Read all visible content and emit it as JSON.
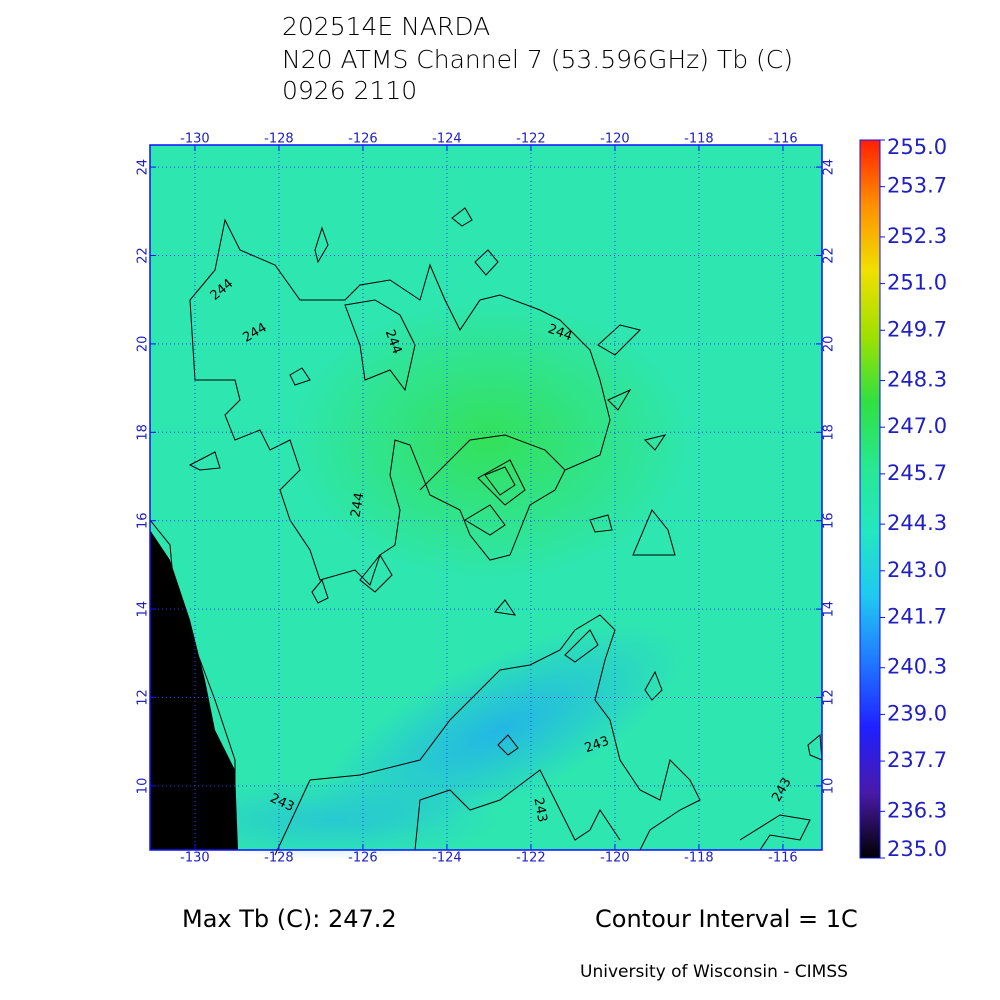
{
  "chart_data": {
    "type": "map",
    "title": [
      "202514E NARDA",
      "N20 ATMS Channel 7 (53.596GHz) Tb (C)",
      "0926 2110"
    ],
    "xlim": [
      -131.07,
      -115.07
    ],
    "ylim": [
      8.55,
      24.5
    ],
    "xticks": [
      -130,
      -128,
      -126,
      -124,
      -122,
      -120,
      -118,
      -116
    ],
    "yticks": [
      10,
      12,
      14,
      16,
      18,
      20,
      22,
      24
    ],
    "grid": true,
    "clim": [
      235,
      255
    ],
    "colormap": [
      "#000000",
      "#4a1aa8",
      "#2020ff",
      "#2078ff",
      "#20c8f0",
      "#24e6c0",
      "#28e890",
      "#30e040",
      "#a0e000",
      "#f0e000",
      "#ff9000",
      "#ff2000"
    ],
    "cticks": [
      {
        "value": 255,
        "label": "255.0"
      },
      {
        "value": 253.7,
        "label": "253.7"
      },
      {
        "value": 252.3,
        "label": "252.3"
      },
      {
        "value": 251,
        "label": "251.0"
      },
      {
        "value": 249.7,
        "label": "249.7"
      },
      {
        "value": 248.3,
        "label": "248.3"
      },
      {
        "value": 247,
        "label": "247.0"
      },
      {
        "value": 245.7,
        "label": "245.7"
      },
      {
        "value": 244.3,
        "label": "244.3"
      },
      {
        "value": 243,
        "label": "243.0"
      },
      {
        "value": 241.7,
        "label": "241.7"
      },
      {
        "value": 240.3,
        "label": "240.3"
      },
      {
        "value": 239,
        "label": "239.0"
      },
      {
        "value": 237.7,
        "label": "237.7"
      },
      {
        "value": 236.3,
        "label": "236.3"
      },
      {
        "value": 235,
        "label": "235.0"
      }
    ],
    "contour_labels": [
      "244",
      "244",
      "244",
      "244",
      "244",
      "243",
      "243",
      "243",
      "243"
    ],
    "max_label": "Max Tb (C): 247.2",
    "contour_interval": "Contour Interval = 1C",
    "credit": "University of Wisconsin - CIMSS"
  }
}
